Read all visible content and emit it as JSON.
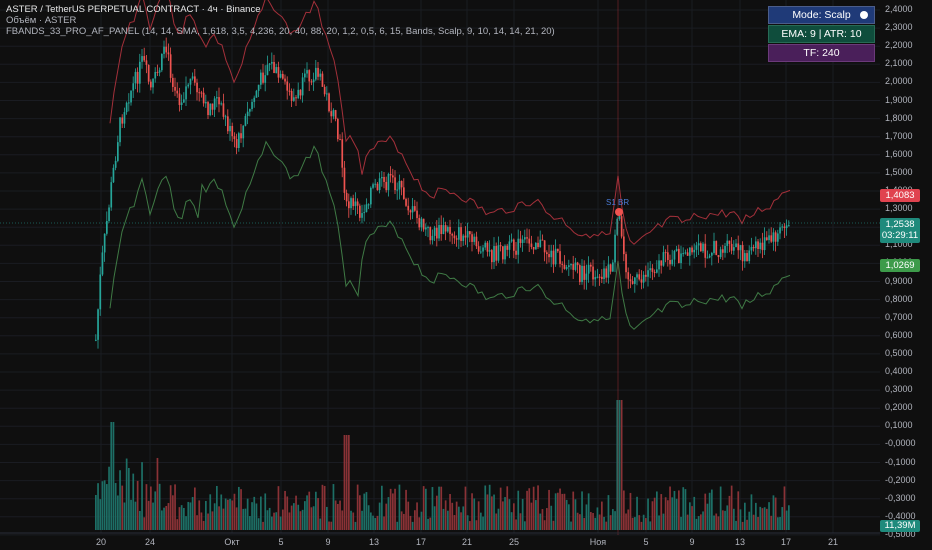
{
  "legend": {
    "symbol": "ASTER / TetherUS PERPETUAL CONTRACT · 4ч · Binance",
    "volume": "Объём · ASTER",
    "indicator": "FBANDS_33_PRO_AF_PANEL (14, 14, SMA, 1,618, 3,5, 4,236, 20, 40, 88, 20, 1,2, 0,5, 6, 15, Bands, Scalp, 9, 10, 14, 14, 21, 20)"
  },
  "panel": {
    "mode": "Mode: Scalp",
    "ema_atr": "EMA: 9 | ATR: 10",
    "tf": "TF: 240"
  },
  "price_axis": [
    "2,4000",
    "2,3000",
    "2,2000",
    "2,1000",
    "2,0000",
    "1,9000",
    "1,8000",
    "1,7000",
    "1,6000",
    "1,5000",
    "1,4000",
    "1,3000",
    "1,2000",
    "1,1000",
    "1,0000",
    "0,9000",
    "0,8000",
    "0,7000",
    "0,6000",
    "0,5000",
    "0,4000",
    "0,3000",
    "0,2000",
    "0,1000",
    "-0,0000",
    "-0,1000",
    "-0,2000",
    "-0,3000",
    "-0,4000",
    "-0,5000"
  ],
  "tags": {
    "upper": "1,4083",
    "price": "1,2538",
    "countdown": "03:29:11",
    "lower": "1,0269",
    "volume": "11,39M"
  },
  "signal_label": "S1 BR",
  "time_axis": [
    "20",
    "24",
    "Окт",
    "5",
    "9",
    "13",
    "17",
    "21",
    "25",
    "Ноя",
    "5",
    "9",
    "13",
    "17",
    "21"
  ],
  "colors": {
    "up": "#26a69a",
    "down": "#ef5350",
    "upper_band": "#b2323a",
    "lower_band": "#3f7a45"
  }
}
